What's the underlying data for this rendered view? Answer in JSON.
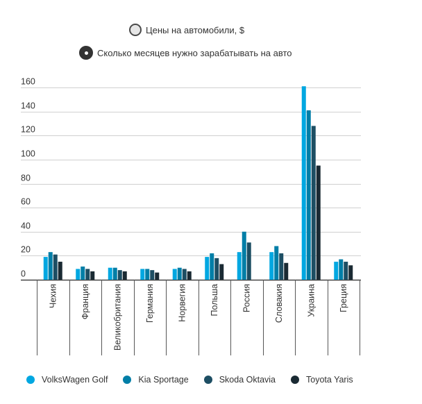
{
  "controls": {
    "options": [
      {
        "label": "Цены на автомобили, $",
        "selected": false
      },
      {
        "label": "Сколько месяцев нужно зарабатывать на авто",
        "selected": true
      }
    ]
  },
  "colors": {
    "volkswagen_golf": "#00a7e1",
    "kia_sportage": "#007ea7",
    "skoda_octavia": "#1d4e63",
    "toyota_yaris": "#1a2a33",
    "grid": "#d0d0d0",
    "axis_text": "#333333"
  },
  "chart_data": {
    "type": "bar",
    "title": "",
    "xlabel": "",
    "ylabel": "",
    "ylim": [
      0,
      160
    ],
    "yticks": [
      0,
      20,
      40,
      60,
      80,
      100,
      120,
      140,
      160
    ],
    "grid": true,
    "legend_position": "bottom",
    "categories": [
      "Чехия",
      "Франция",
      "Великобритания",
      "Германия",
      "Норвегия",
      "Польша",
      "Россия",
      "Словакия",
      "Украина",
      "Греция"
    ],
    "series": [
      {
        "name": "VolksWagen Golf",
        "color_key": "volkswagen_golf",
        "values": [
          19,
          9,
          10,
          9,
          9,
          19,
          23,
          23,
          161,
          15
        ]
      },
      {
        "name": "Kia Sportage",
        "color_key": "kia_sportage",
        "values": [
          23,
          11,
          10,
          9,
          10,
          22,
          40,
          28,
          141,
          17
        ]
      },
      {
        "name": "Skoda Oktavia",
        "color_key": "skoda_octavia",
        "values": [
          21,
          9,
          8,
          8,
          9,
          18,
          31,
          22,
          128,
          15
        ]
      },
      {
        "name": "Toyota Yaris",
        "color_key": "toyota_yaris",
        "values": [
          15,
          7,
          7,
          6,
          7,
          13,
          0,
          14,
          95,
          12
        ]
      }
    ]
  }
}
